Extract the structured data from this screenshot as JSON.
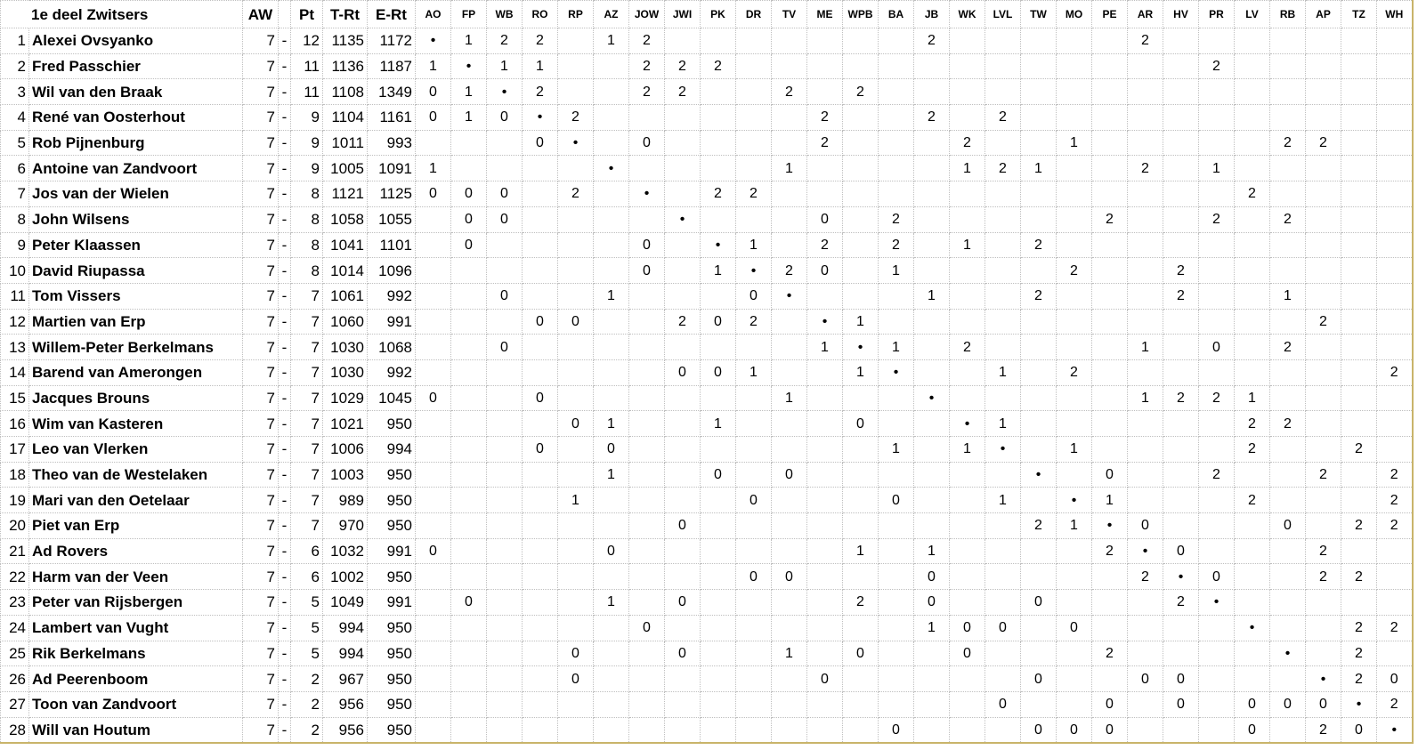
{
  "header": {
    "title": "1e deel Zwitsers",
    "aw": "AW",
    "pt": "Pt",
    "trt": "T-Rt",
    "ert": "E-Rt",
    "opponents": [
      "AO",
      "FP",
      "WB",
      "RO",
      "RP",
      "AZ",
      "JOW",
      "JWI",
      "PK",
      "DR",
      "TV",
      "ME",
      "WPB",
      "BA",
      "JB",
      "WK",
      "LVL",
      "TW",
      "MO",
      "PE",
      "AR",
      "HV",
      "PR",
      "LV",
      "RB",
      "AP",
      "TZ",
      "WH"
    ]
  },
  "table": {
    "rows": [
      {
        "rank": 1,
        "name": "Alexei Ovsyanko",
        "aw": 7,
        "dash": "-",
        "pt": 12,
        "trt": 1135,
        "ert": 1172,
        "results": [
          "•",
          1,
          2,
          2,
          null,
          1,
          2,
          null,
          null,
          null,
          null,
          null,
          null,
          null,
          2,
          null,
          null,
          null,
          null,
          null,
          2,
          null,
          null,
          null,
          null,
          null,
          null,
          null
        ]
      },
      {
        "rank": 2,
        "name": "Fred Passchier",
        "aw": 7,
        "dash": "-",
        "pt": 11,
        "trt": 1136,
        "ert": 1187,
        "results": [
          1,
          "•",
          1,
          1,
          null,
          null,
          2,
          2,
          2,
          null,
          null,
          null,
          null,
          null,
          null,
          null,
          null,
          null,
          null,
          null,
          null,
          null,
          2,
          null,
          null,
          null,
          null,
          null
        ]
      },
      {
        "rank": 3,
        "name": "Wil van den Braak",
        "aw": 7,
        "dash": "-",
        "pt": 11,
        "trt": 1108,
        "ert": 1349,
        "results": [
          0,
          1,
          "•",
          2,
          null,
          null,
          2,
          2,
          null,
          null,
          2,
          null,
          2,
          null,
          null,
          null,
          null,
          null,
          null,
          null,
          null,
          null,
          null,
          null,
          null,
          null,
          null,
          null
        ]
      },
      {
        "rank": 4,
        "name": "René van Oosterhout",
        "aw": 7,
        "dash": "-",
        "pt": 9,
        "trt": 1104,
        "ert": 1161,
        "results": [
          0,
          1,
          0,
          "•",
          2,
          null,
          null,
          null,
          null,
          null,
          null,
          2,
          null,
          null,
          2,
          null,
          2,
          null,
          null,
          null,
          null,
          null,
          null,
          null,
          null,
          null,
          null,
          null
        ]
      },
      {
        "rank": 5,
        "name": "Rob Pijnenburg",
        "aw": 7,
        "dash": "-",
        "pt": 9,
        "trt": 1011,
        "ert": 993,
        "results": [
          null,
          null,
          null,
          0,
          "•",
          null,
          0,
          null,
          null,
          null,
          null,
          2,
          null,
          null,
          null,
          2,
          null,
          null,
          1,
          null,
          null,
          null,
          null,
          null,
          2,
          2,
          null,
          null
        ]
      },
      {
        "rank": 6,
        "name": "Antoine van Zandvoort",
        "aw": 7,
        "dash": "-",
        "pt": 9,
        "trt": 1005,
        "ert": 1091,
        "results": [
          1,
          null,
          null,
          null,
          null,
          "•",
          null,
          null,
          null,
          null,
          1,
          null,
          null,
          null,
          null,
          1,
          2,
          1,
          null,
          null,
          2,
          null,
          1,
          null,
          null,
          null,
          null,
          null
        ]
      },
      {
        "rank": 7,
        "name": "Jos van der Wielen",
        "aw": 7,
        "dash": "-",
        "pt": 8,
        "trt": 1121,
        "ert": 1125,
        "results": [
          0,
          0,
          0,
          null,
          2,
          null,
          "•",
          null,
          2,
          2,
          null,
          null,
          null,
          null,
          null,
          null,
          null,
          null,
          null,
          null,
          null,
          null,
          null,
          2,
          null,
          null,
          null,
          null
        ]
      },
      {
        "rank": 8,
        "name": "John Wilsens",
        "aw": 7,
        "dash": "-",
        "pt": 8,
        "trt": 1058,
        "ert": 1055,
        "results": [
          null,
          0,
          0,
          null,
          null,
          null,
          null,
          "•",
          null,
          null,
          null,
          0,
          null,
          2,
          null,
          null,
          null,
          null,
          null,
          2,
          null,
          null,
          2,
          null,
          2,
          null,
          null,
          null
        ]
      },
      {
        "rank": 9,
        "name": "Peter Klaassen",
        "aw": 7,
        "dash": "-",
        "pt": 8,
        "trt": 1041,
        "ert": 1101,
        "results": [
          null,
          0,
          null,
          null,
          null,
          null,
          0,
          null,
          "•",
          1,
          null,
          2,
          null,
          2,
          null,
          1,
          null,
          2,
          null,
          null,
          null,
          null,
          null,
          null,
          null,
          null,
          null,
          null
        ]
      },
      {
        "rank": 10,
        "name": "David Riupassa",
        "aw": 7,
        "dash": "-",
        "pt": 8,
        "trt": 1014,
        "ert": 1096,
        "results": [
          null,
          null,
          null,
          null,
          null,
          null,
          0,
          null,
          1,
          "•",
          2,
          0,
          null,
          1,
          null,
          null,
          null,
          null,
          2,
          null,
          null,
          2,
          null,
          null,
          null,
          null,
          null,
          null
        ]
      },
      {
        "rank": 11,
        "name": "Tom Vissers",
        "aw": 7,
        "dash": "-",
        "pt": 7,
        "trt": 1061,
        "ert": 992,
        "results": [
          null,
          null,
          0,
          null,
          null,
          1,
          null,
          null,
          null,
          0,
          "•",
          null,
          null,
          null,
          1,
          null,
          null,
          2,
          null,
          null,
          null,
          2,
          null,
          null,
          1,
          null,
          null,
          null
        ]
      },
      {
        "rank": 12,
        "name": "Martien van Erp",
        "aw": 7,
        "dash": "-",
        "pt": 7,
        "trt": 1060,
        "ert": 991,
        "results": [
          null,
          null,
          null,
          0,
          0,
          null,
          null,
          2,
          0,
          2,
          null,
          "•",
          1,
          null,
          null,
          null,
          null,
          null,
          null,
          null,
          null,
          null,
          null,
          null,
          null,
          2,
          null,
          null
        ]
      },
      {
        "rank": 13,
        "name": "Willem-Peter Berkelmans",
        "aw": 7,
        "dash": "-",
        "pt": 7,
        "trt": 1030,
        "ert": 1068,
        "results": [
          null,
          null,
          0,
          null,
          null,
          null,
          null,
          null,
          null,
          null,
          null,
          1,
          "•",
          1,
          null,
          2,
          null,
          null,
          null,
          null,
          1,
          null,
          0,
          null,
          2,
          null,
          null,
          null
        ]
      },
      {
        "rank": 14,
        "name": "Barend van Amerongen",
        "aw": 7,
        "dash": "-",
        "pt": 7,
        "trt": 1030,
        "ert": 992,
        "results": [
          null,
          null,
          null,
          null,
          null,
          null,
          null,
          0,
          0,
          1,
          null,
          null,
          1,
          "•",
          null,
          null,
          1,
          null,
          2,
          null,
          null,
          null,
          null,
          null,
          null,
          null,
          null,
          2
        ]
      },
      {
        "rank": 15,
        "name": "Jacques Brouns",
        "aw": 7,
        "dash": "-",
        "pt": 7,
        "trt": 1029,
        "ert": 1045,
        "results": [
          0,
          null,
          null,
          0,
          null,
          null,
          null,
          null,
          null,
          null,
          1,
          null,
          null,
          null,
          "•",
          null,
          null,
          null,
          null,
          null,
          1,
          2,
          2,
          1,
          null,
          null,
          null,
          null
        ]
      },
      {
        "rank": 16,
        "name": "Wim van Kasteren",
        "aw": 7,
        "dash": "-",
        "pt": 7,
        "trt": 1021,
        "ert": 950,
        "results": [
          null,
          null,
          null,
          null,
          0,
          1,
          null,
          null,
          1,
          null,
          null,
          null,
          0,
          null,
          null,
          "•",
          1,
          null,
          null,
          null,
          null,
          null,
          null,
          2,
          2,
          null,
          null,
          null
        ]
      },
      {
        "rank": 17,
        "name": "Leo van Vlerken",
        "aw": 7,
        "dash": "-",
        "pt": 7,
        "trt": 1006,
        "ert": 994,
        "results": [
          null,
          null,
          null,
          0,
          null,
          0,
          null,
          null,
          null,
          null,
          null,
          null,
          null,
          1,
          null,
          1,
          "•",
          null,
          1,
          null,
          null,
          null,
          null,
          2,
          null,
          null,
          2,
          null
        ]
      },
      {
        "rank": 18,
        "name": "Theo van de Westelaken",
        "aw": 7,
        "dash": "-",
        "pt": 7,
        "trt": 1003,
        "ert": 950,
        "results": [
          null,
          null,
          null,
          null,
          null,
          1,
          null,
          null,
          0,
          null,
          0,
          null,
          null,
          null,
          null,
          null,
          null,
          "•",
          null,
          0,
          null,
          null,
          2,
          null,
          null,
          2,
          null,
          2
        ]
      },
      {
        "rank": 19,
        "name": "Mari van den Oetelaar",
        "aw": 7,
        "dash": "-",
        "pt": 7,
        "trt": 989,
        "ert": 950,
        "results": [
          null,
          null,
          null,
          null,
          1,
          null,
          null,
          null,
          null,
          0,
          null,
          null,
          null,
          0,
          null,
          null,
          1,
          null,
          "•",
          1,
          null,
          null,
          null,
          2,
          null,
          null,
          null,
          2
        ]
      },
      {
        "rank": 20,
        "name": "Piet van Erp",
        "aw": 7,
        "dash": "-",
        "pt": 7,
        "trt": 970,
        "ert": 950,
        "results": [
          null,
          null,
          null,
          null,
          null,
          null,
          null,
          0,
          null,
          null,
          null,
          null,
          null,
          null,
          null,
          null,
          null,
          2,
          1,
          "•",
          0,
          null,
          null,
          null,
          0,
          null,
          2,
          2
        ]
      },
      {
        "rank": 21,
        "name": "Ad Rovers",
        "aw": 7,
        "dash": "-",
        "pt": 6,
        "trt": 1032,
        "ert": 991,
        "results": [
          0,
          null,
          null,
          null,
          null,
          0,
          null,
          null,
          null,
          null,
          null,
          null,
          1,
          null,
          1,
          null,
          null,
          null,
          null,
          2,
          "•",
          0,
          null,
          null,
          null,
          2,
          null,
          null
        ]
      },
      {
        "rank": 22,
        "name": "Harm van der Veen",
        "aw": 7,
        "dash": "-",
        "pt": 6,
        "trt": 1002,
        "ert": 950,
        "results": [
          null,
          null,
          null,
          null,
          null,
          null,
          null,
          null,
          null,
          0,
          0,
          null,
          null,
          null,
          0,
          null,
          null,
          null,
          null,
          null,
          2,
          "•",
          0,
          null,
          null,
          2,
          2,
          null
        ]
      },
      {
        "rank": 23,
        "name": "Peter van Rijsbergen",
        "aw": 7,
        "dash": "-",
        "pt": 5,
        "trt": 1049,
        "ert": 991,
        "results": [
          null,
          0,
          null,
          null,
          null,
          1,
          null,
          0,
          null,
          null,
          null,
          null,
          2,
          null,
          0,
          null,
          null,
          0,
          null,
          null,
          null,
          2,
          "•",
          null,
          null,
          null,
          null,
          null
        ]
      },
      {
        "rank": 24,
        "name": "Lambert van Vught",
        "aw": 7,
        "dash": "-",
        "pt": 5,
        "trt": 994,
        "ert": 950,
        "results": [
          null,
          null,
          null,
          null,
          null,
          null,
          0,
          null,
          null,
          null,
          null,
          null,
          null,
          null,
          1,
          0,
          0,
          null,
          0,
          null,
          null,
          null,
          null,
          "•",
          null,
          null,
          2,
          2
        ]
      },
      {
        "rank": 25,
        "name": "Rik Berkelmans",
        "aw": 7,
        "dash": "-",
        "pt": 5,
        "trt": 994,
        "ert": 950,
        "results": [
          null,
          null,
          null,
          null,
          0,
          null,
          null,
          0,
          null,
          null,
          1,
          null,
          0,
          null,
          null,
          0,
          null,
          null,
          null,
          2,
          null,
          null,
          null,
          null,
          "•",
          null,
          2,
          null
        ]
      },
      {
        "rank": 26,
        "name": "Ad Peerenboom",
        "aw": 7,
        "dash": "-",
        "pt": 2,
        "trt": 967,
        "ert": 950,
        "results": [
          null,
          null,
          null,
          null,
          0,
          null,
          null,
          null,
          null,
          null,
          null,
          0,
          null,
          null,
          null,
          null,
          null,
          0,
          null,
          null,
          0,
          0,
          null,
          null,
          null,
          "•",
          2,
          0
        ]
      },
      {
        "rank": 27,
        "name": "Toon van Zandvoort",
        "aw": 7,
        "dash": "-",
        "pt": 2,
        "trt": 956,
        "ert": 950,
        "results": [
          null,
          null,
          null,
          null,
          null,
          null,
          null,
          null,
          null,
          null,
          null,
          null,
          null,
          null,
          null,
          null,
          0,
          null,
          null,
          0,
          null,
          0,
          null,
          0,
          0,
          0,
          "•",
          2
        ]
      },
      {
        "rank": 28,
        "name": "Will van Houtum",
        "aw": 7,
        "dash": "-",
        "pt": 2,
        "trt": 956,
        "ert": 950,
        "results": [
          null,
          null,
          null,
          null,
          null,
          null,
          null,
          null,
          null,
          null,
          null,
          null,
          null,
          0,
          null,
          null,
          null,
          0,
          0,
          0,
          null,
          null,
          null,
          0,
          null,
          2,
          0,
          "•"
        ]
      }
    ]
  }
}
